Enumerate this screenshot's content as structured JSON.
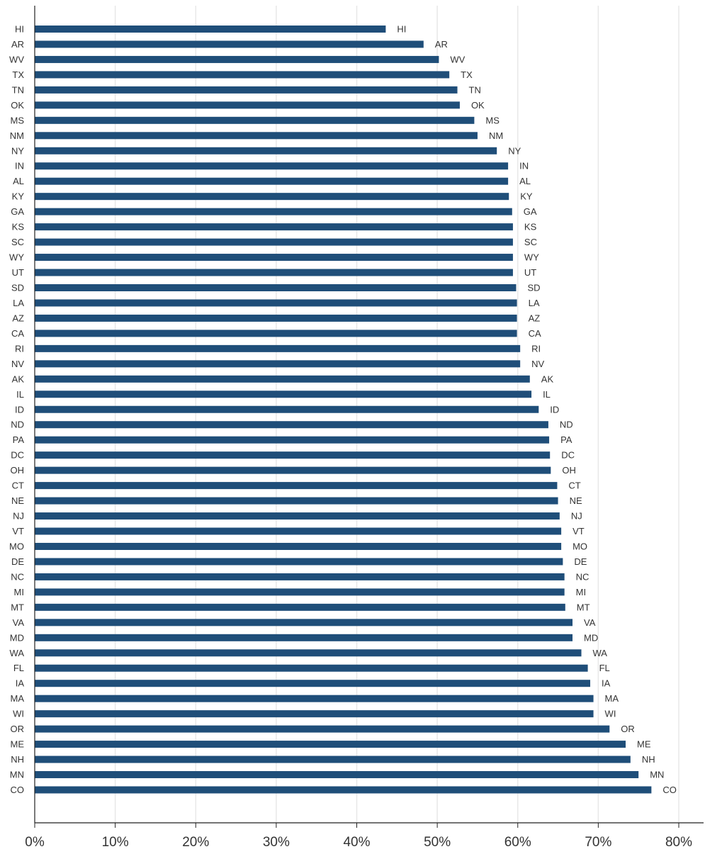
{
  "chart_data": {
    "type": "bar",
    "orientation": "horizontal",
    "categories": [
      "HI",
      "AR",
      "WV",
      "TX",
      "TN",
      "OK",
      "MS",
      "NM",
      "NY",
      "IN",
      "AL",
      "KY",
      "GA",
      "KS",
      "SC",
      "WY",
      "UT",
      "SD",
      "LA",
      "AZ",
      "CA",
      "RI",
      "NV",
      "AK",
      "IL",
      "ID",
      "ND",
      "PA",
      "DC",
      "OH",
      "CT",
      "NE",
      "NJ",
      "VT",
      "MO",
      "DE",
      "NC",
      "MI",
      "MT",
      "VA",
      "MD",
      "WA",
      "FL",
      "IA",
      "MA",
      "WI",
      "OR",
      "ME",
      "NH",
      "MN",
      "CO"
    ],
    "values": [
      43.6,
      48.3,
      50.2,
      51.5,
      52.5,
      52.8,
      54.6,
      55.0,
      57.4,
      58.8,
      58.8,
      58.9,
      59.3,
      59.4,
      59.4,
      59.4,
      59.4,
      59.8,
      59.9,
      59.9,
      59.9,
      60.3,
      60.3,
      61.5,
      61.7,
      62.6,
      63.8,
      63.9,
      64.0,
      64.1,
      64.9,
      65.0,
      65.2,
      65.4,
      65.4,
      65.6,
      65.8,
      65.8,
      65.9,
      66.8,
      66.8,
      67.9,
      68.7,
      69.0,
      69.4,
      69.4,
      71.4,
      73.4,
      74.0,
      75.0,
      76.6
    ],
    "data_labels": [
      "HI",
      "AR",
      "WV",
      "TX",
      "TN",
      "OK",
      "MS",
      "NM",
      "NY",
      "IN",
      "AL",
      "KY",
      "GA",
      "KS",
      "SC",
      "WY",
      "UT",
      "SD",
      "LA",
      "AZ",
      "CA",
      "RI",
      "NV",
      "AK",
      "IL",
      "ID",
      "ND",
      "PA",
      "DC",
      "OH",
      "CT",
      "NE",
      "NJ",
      "VT",
      "MO",
      "DE",
      "NC",
      "MI",
      "MT",
      "VA",
      "MD",
      "WA",
      "FL",
      "IA",
      "MA",
      "WI",
      "OR",
      "ME",
      "NH",
      "MN",
      "CO"
    ],
    "xticks": [
      "0%",
      "10%",
      "20%",
      "30%",
      "40%",
      "50%",
      "60%",
      "70%",
      "80%"
    ],
    "xlim": [
      0,
      83
    ],
    "xlabel": "",
    "ylabel": "",
    "title": "",
    "grid": "vertical",
    "legend": "none",
    "bar_color": "#1f4e79",
    "grid_color": "#e8e8e8",
    "axis_color": "#222222"
  }
}
